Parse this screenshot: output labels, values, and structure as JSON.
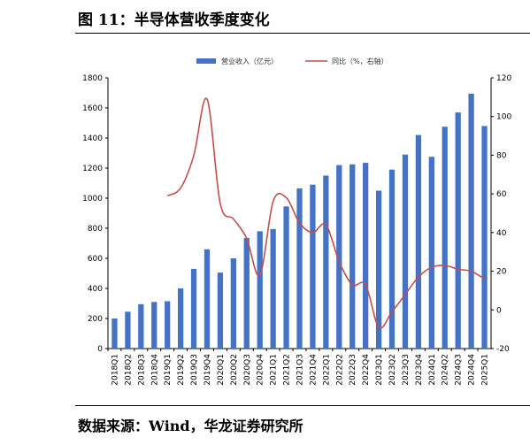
{
  "title": "图 11：半导体营收季度变化",
  "source": "数据来源：Wind，华龙证券研究所",
  "chart_data": {
    "type": "bar",
    "categories": [
      "2018Q1",
      "2018Q2",
      "2018Q3",
      "2018Q4",
      "2019Q1",
      "2019Q2",
      "2019Q3",
      "2019Q4",
      "2020Q1",
      "2020Q2",
      "2020Q3",
      "2020Q4",
      "2021Q1",
      "2021Q2",
      "2021Q3",
      "2021Q4",
      "2022Q1",
      "2022Q2",
      "2022Q3",
      "2022Q4",
      "2023Q1",
      "2023Q2",
      "2023Q3",
      "2023Q4",
      "2024Q1",
      "2024Q2",
      "2024Q3",
      "2024Q4",
      "2025Q1"
    ],
    "series": [
      {
        "name": "营业收入（亿元）",
        "type": "bar",
        "axis": "left",
        "color": "#4472C4",
        "values": [
          200,
          245,
          295,
          310,
          315,
          400,
          530,
          660,
          505,
          600,
          735,
          780,
          795,
          945,
          1065,
          1090,
          1150,
          1220,
          1225,
          1235,
          1050,
          1190,
          1290,
          1420,
          1275,
          1475,
          1570,
          1695,
          1480
        ]
      },
      {
        "name": "同比（%，右轴）",
        "type": "line",
        "axis": "right",
        "color": "#C0504D",
        "values": [
          null,
          null,
          null,
          null,
          59,
          63,
          80,
          109,
          55,
          47,
          37,
          18,
          56,
          58,
          45,
          40,
          44,
          25,
          13,
          13,
          -9,
          -1,
          8,
          17,
          22,
          23,
          21,
          20,
          16
        ]
      }
    ],
    "ylim_left": [
      0,
      1800
    ],
    "yticks_left": [
      0,
      200,
      400,
      600,
      800,
      1000,
      1200,
      1400,
      1600,
      1800
    ],
    "ylim_right": [
      -20,
      120
    ],
    "yticks_right": [
      -20,
      0,
      20,
      40,
      60,
      80,
      100,
      120
    ],
    "legend": "top-center",
    "grid": false
  }
}
